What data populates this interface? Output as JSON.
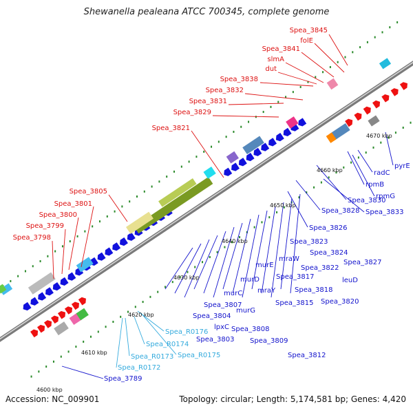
{
  "title": "Shewanella pealeana ATCC 700345, complete genome",
  "footer": {
    "accession": "Accession: NC_009901",
    "summary": "Topology: circular; Length: 5,174,581 bp; Genes: 4,420"
  },
  "ticks": [
    "4600 kbp",
    "4610 kbp",
    "4620 kbp",
    "4630 kbp",
    "4640 kbp",
    "4650 kbp",
    "4660 kbp",
    "4670 kbp"
  ],
  "labels_red": [
    "Spea_3845",
    "folE",
    "Spea_3841",
    "slmA",
    "dut",
    "Spea_3838",
    "Spea_3832",
    "Spea_3831",
    "Spea_3829",
    "Spea_3821",
    "Spea_3805",
    "Spea_3801",
    "Spea_3800",
    "Spea_3799",
    "Spea_3798"
  ],
  "labels_blue": [
    "pyrE",
    "radC",
    "rpmB",
    "rpmG",
    "Spea_3830",
    "Spea_3833",
    "Spea_3828",
    "Spea_3826",
    "Spea_3823",
    "Spea_3824",
    "Spea_3827",
    "mraW",
    "Spea_3822",
    "murE",
    "leuD",
    "mraY",
    "Spea_3817",
    "murD",
    "Spea_3818",
    "Spea_3815",
    "Spea_3820",
    "murC",
    "murG",
    "Spea_3807",
    "Spea_3804",
    "lpxC",
    "Spea_3808",
    "Spea_3803",
    "Spea_3809",
    "Spea_3812",
    "Spea_3789"
  ],
  "labels_rna": [
    "Spea_R0176",
    "Spea_R0174",
    "Spea_R0175",
    "Spea_R0173",
    "Spea_R0172"
  ],
  "colors": {
    "forward_gene": "#ee1111",
    "reverse_gene": "#1111dd",
    "rna": "#44bbee",
    "backbone": "#888888",
    "gc_skew": "#2a8a2a"
  }
}
